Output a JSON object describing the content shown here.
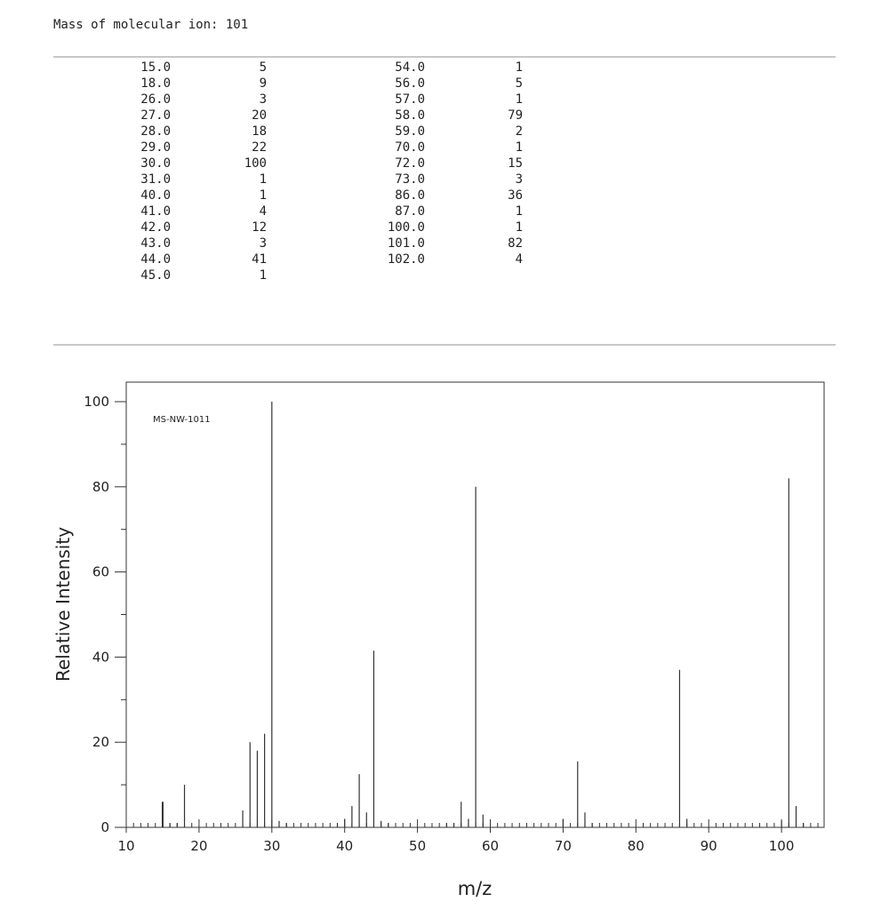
{
  "header": {
    "molecular_ion_text": "Mass of molecular ion: 101"
  },
  "peak_table": [
    [
      "15.0",
      "5",
      "54.0",
      "1"
    ],
    [
      "18.0",
      "9",
      "56.0",
      "5"
    ],
    [
      "26.0",
      "3",
      "57.0",
      "1"
    ],
    [
      "27.0",
      "20",
      "58.0",
      "79"
    ],
    [
      "28.0",
      "18",
      "59.0",
      "2"
    ],
    [
      "29.0",
      "22",
      "70.0",
      "1"
    ],
    [
      "30.0",
      "100",
      "72.0",
      "15"
    ],
    [
      "31.0",
      "1",
      "73.0",
      "3"
    ],
    [
      "40.0",
      "1",
      "86.0",
      "36"
    ],
    [
      "41.0",
      "4",
      "87.0",
      "1"
    ],
    [
      "42.0",
      "12",
      "100.0",
      "1"
    ],
    [
      "43.0",
      "3",
      "101.0",
      "82"
    ],
    [
      "44.0",
      "41",
      "102.0",
      "4"
    ],
    [
      "45.0",
      "1",
      "",
      ""
    ]
  ],
  "chart_data": {
    "type": "bar",
    "annotation": "MS-NW-1011",
    "xlabel": "m/z",
    "ylabel": "Relative Intensity",
    "xlim": [
      10,
      105
    ],
    "ylim": [
      0,
      105
    ],
    "x_ticks": [
      10,
      20,
      30,
      40,
      50,
      60,
      70,
      80,
      90,
      100
    ],
    "y_ticks": [
      0,
      20,
      40,
      60,
      80,
      100
    ],
    "x": [
      15,
      16,
      17,
      18,
      26,
      27,
      28,
      29,
      30,
      31,
      32,
      39,
      40,
      41,
      42,
      43,
      44,
      45,
      46,
      54,
      55,
      56,
      57,
      58,
      59,
      70,
      72,
      73,
      74,
      86,
      87,
      100,
      101,
      102,
      103
    ],
    "values": [
      6,
      1,
      1,
      10,
      4,
      20,
      18,
      22,
      100,
      1.5,
      1,
      1,
      2,
      5,
      12.5,
      3.5,
      41.5,
      1.5,
      1,
      1,
      1,
      6,
      2,
      80,
      3,
      2,
      15.5,
      3.5,
      1,
      37,
      2,
      1.5,
      82,
      5,
      1
    ]
  }
}
